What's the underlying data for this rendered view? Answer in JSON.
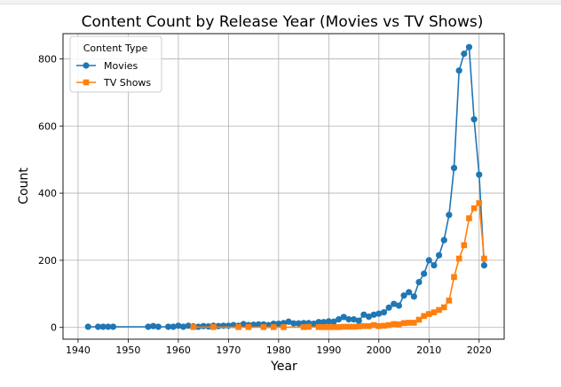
{
  "chart_data": {
    "type": "line",
    "title": "Content Count by Release Year (Movies vs TV Shows)",
    "xlabel": "Year",
    "ylabel": "Count",
    "xlim": [
      1937,
      2025
    ],
    "ylim": [
      -35,
      875
    ],
    "xticks": [
      1940,
      1950,
      1960,
      1970,
      1980,
      1990,
      2000,
      2010,
      2020
    ],
    "yticks": [
      0,
      200,
      400,
      600,
      800
    ],
    "grid": true,
    "legend": {
      "title": "Content Type",
      "placement": "top-left"
    },
    "series": [
      {
        "name": "Movies",
        "color": "#1f77b4",
        "marker": "circle",
        "x": [
          1942,
          1944,
          1945,
          1946,
          1947,
          1954,
          1955,
          1956,
          1958,
          1959,
          1960,
          1961,
          1962,
          1963,
          1964,
          1965,
          1966,
          1967,
          1968,
          1969,
          1970,
          1971,
          1972,
          1973,
          1974,
          1975,
          1976,
          1977,
          1978,
          1979,
          1980,
          1981,
          1982,
          1983,
          1984,
          1985,
          1986,
          1987,
          1988,
          1989,
          1990,
          1991,
          1992,
          1993,
          1994,
          1995,
          1996,
          1997,
          1998,
          1999,
          2000,
          2001,
          2002,
          2003,
          2004,
          2005,
          2006,
          2007,
          2008,
          2009,
          2010,
          2011,
          2012,
          2013,
          2014,
          2015,
          2016,
          2017,
          2018,
          2019,
          2020,
          2021
        ],
        "y": [
          2,
          2,
          2,
          2,
          2,
          2,
          4,
          2,
          2,
          2,
          5,
          2,
          5,
          3,
          2,
          4,
          3,
          5,
          4,
          5,
          5,
          7,
          5,
          10,
          7,
          8,
          9,
          9,
          7,
          11,
          11,
          13,
          17,
          12,
          12,
          13,
          13,
          11,
          16,
          16,
          18,
          17,
          24,
          31,
          24,
          24,
          20,
          38,
          32,
          38,
          41,
          45,
          59,
          70,
          65,
          95,
          105,
          92,
          135,
          160,
          200,
          185,
          215,
          260,
          335,
          475,
          765,
          815,
          835,
          620,
          455,
          185
        ]
      },
      {
        "name": "TV Shows",
        "color": "#ff7f0e",
        "marker": "square",
        "x": [
          1963,
          1967,
          1972,
          1974,
          1977,
          1979,
          1981,
          1985,
          1986,
          1988,
          1989,
          1990,
          1991,
          1992,
          1993,
          1994,
          1995,
          1996,
          1997,
          1998,
          1999,
          2000,
          2001,
          2002,
          2003,
          2004,
          2005,
          2006,
          2007,
          2008,
          2009,
          2010,
          2011,
          2012,
          2013,
          2014,
          2015,
          2016,
          2017,
          2018,
          2019,
          2020,
          2021
        ],
        "y": [
          1,
          1,
          1,
          1,
          1,
          1,
          1,
          1,
          2,
          1,
          1,
          1,
          1,
          1,
          2,
          2,
          2,
          3,
          4,
          4,
          7,
          4,
          5,
          7,
          10,
          9,
          13,
          14,
          14,
          23,
          34,
          40,
          45,
          52,
          60,
          80,
          150,
          205,
          245,
          325,
          355,
          370,
          205
        ]
      }
    ]
  }
}
